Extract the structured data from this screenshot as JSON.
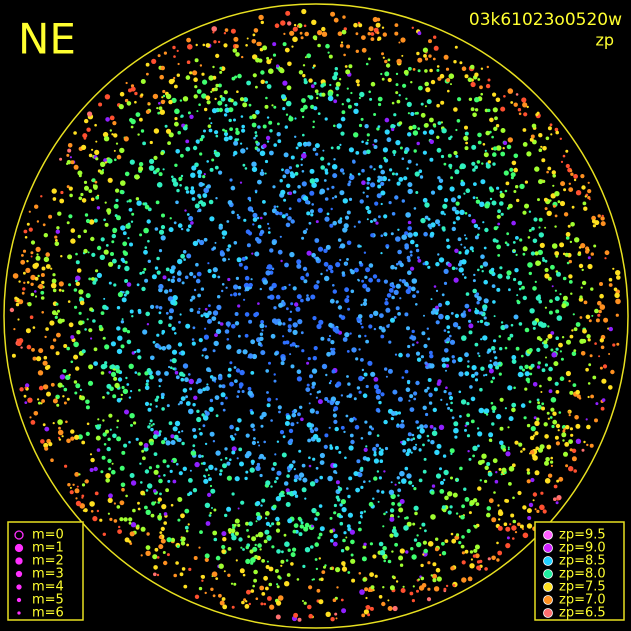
{
  "header": {
    "direction": "NE",
    "image_id": "03k61023o0520w",
    "quantity": "zp"
  },
  "magnitude_legend": [
    "m=0",
    "m=1",
    "m=2",
    "m=3",
    "m=4",
    "m=5",
    "m=6"
  ],
  "zp_legend": [
    "zp=9.5",
    "zp=9.0",
    "zp=8.5",
    "zp=8.0",
    "zp=7.5",
    "zp=7.0",
    "zp=6.5"
  ]
}
